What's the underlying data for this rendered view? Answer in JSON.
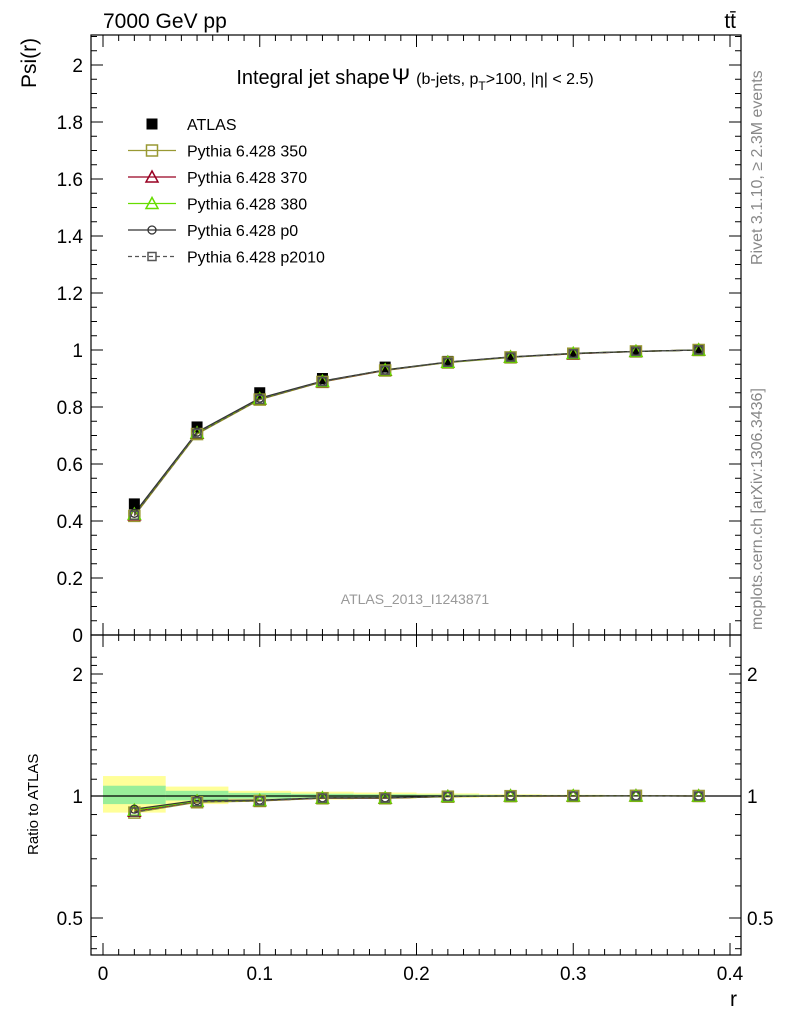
{
  "header": {
    "energy_label": "7000 GeV pp",
    "process_label": "tt̄",
    "side_top": "Rivet 3.1.10, ≥ 2.3M events",
    "side_bottom": "mcplots.cern.ch [arXiv:1306.3436]",
    "watermark": "ATLAS_2013_I1243871"
  },
  "chart_data": [
    {
      "panel": "main",
      "type": "scatter",
      "title": "Integral jet shape",
      "title_symbol": "Ψ",
      "title_cut": "(b-jets, p",
      "title_sub": "T",
      "title_cut2": ">100, |η| < 2.5)",
      "ylabel": "Psi(r)",
      "xlim": [
        0,
        0.4
      ],
      "ylim": [
        0,
        2.1
      ],
      "yticks": [
        0,
        0.2,
        0.4,
        0.6,
        0.8,
        1,
        1.2,
        1.4,
        1.6,
        1.8,
        2
      ],
      "ytick_labels": [
        "0",
        "0.2",
        "0.4",
        "0.6",
        "0.8",
        "1",
        "1.2",
        "1.4",
        "1.6",
        "1.8",
        "2"
      ],
      "x": [
        0.02,
        0.06,
        0.1,
        0.14,
        0.18,
        0.22,
        0.26,
        0.3,
        0.34,
        0.38
      ],
      "series": [
        {
          "name": "ATLAS",
          "color": "#000000",
          "marker": "filled-square",
          "values": [
            0.46,
            0.73,
            0.85,
            0.9,
            0.94,
            0.96,
            0.975,
            0.987,
            0.994,
            1.0
          ]
        },
        {
          "name": "Pythia 6.428 350",
          "color": "#999933",
          "marker": "open-square",
          "values": [
            0.418,
            0.705,
            0.826,
            0.888,
            0.928,
            0.956,
            0.974,
            0.987,
            0.995,
            1.0
          ]
        },
        {
          "name": "Pythia 6.428 370",
          "color": "#990022",
          "marker": "open-triangle",
          "values": [
            0.422,
            0.708,
            0.828,
            0.889,
            0.929,
            0.957,
            0.975,
            0.987,
            0.995,
            1.0
          ]
        },
        {
          "name": "Pythia 6.428 380",
          "color": "#66dd00",
          "marker": "open-triangle",
          "values": [
            0.424,
            0.709,
            0.829,
            0.89,
            0.93,
            0.957,
            0.975,
            0.988,
            0.995,
            1.0
          ]
        },
        {
          "name": "Pythia 6.428 p0",
          "color": "#333333",
          "marker": "open-circle",
          "values": [
            0.427,
            0.712,
            0.831,
            0.891,
            0.93,
            0.958,
            0.976,
            0.988,
            0.995,
            1.0
          ]
        },
        {
          "name": "Pythia 6.428 p2010",
          "color": "#555555",
          "marker": "open-square-dashed",
          "values": [
            0.42,
            0.707,
            0.827,
            0.889,
            0.929,
            0.957,
            0.975,
            0.987,
            0.995,
            1.0
          ]
        }
      ]
    },
    {
      "panel": "ratio",
      "type": "line",
      "ylabel": "Ratio to ATLAS",
      "xlabel": "r",
      "xlim": [
        0,
        0.4
      ],
      "ylim": [
        0.4,
        2.3
      ],
      "scale": "log",
      "yticks": [
        0.5,
        1,
        2
      ],
      "ytick_labels": [
        "0.5",
        "1",
        "2"
      ],
      "xticks": [
        0,
        0.1,
        0.2,
        0.3,
        0.4
      ],
      "xtick_labels": [
        "0",
        "0.1",
        "0.2",
        "0.3",
        "0.4"
      ],
      "x": [
        0.02,
        0.06,
        0.1,
        0.14,
        0.18,
        0.22,
        0.26,
        0.3,
        0.34,
        0.38
      ],
      "bin_edges": [
        0,
        0.04,
        0.08,
        0.12,
        0.16,
        0.2,
        0.24,
        0.28,
        0.32,
        0.36,
        0.4
      ],
      "band_yellow": [
        [
          0.91,
          1.12
        ],
        [
          0.955,
          1.055
        ],
        [
          0.975,
          1.03
        ],
        [
          0.98,
          1.025
        ],
        [
          0.985,
          1.02
        ],
        [
          0.99,
          1.015
        ],
        [
          0.993,
          1.01
        ],
        [
          0.995,
          1.007
        ],
        [
          0.997,
          1.005
        ],
        [
          0.998,
          1.003
        ]
      ],
      "band_green": [
        [
          0.955,
          1.06
        ],
        [
          0.975,
          1.03
        ],
        [
          0.985,
          1.018
        ],
        [
          0.99,
          1.013
        ],
        [
          0.992,
          1.01
        ],
        [
          0.995,
          1.008
        ],
        [
          0.996,
          1.006
        ],
        [
          0.997,
          1.004
        ],
        [
          0.998,
          1.003
        ],
        [
          0.999,
          1.002
        ]
      ],
      "series": [
        {
          "name": "Pythia 6.428 350",
          "color": "#999933",
          "marker": "open-square",
          "values": [
            0.91,
            0.965,
            0.972,
            0.987,
            0.987,
            0.996,
            0.999,
            1.0,
            1.001,
            1.0
          ]
        },
        {
          "name": "Pythia 6.428 370",
          "color": "#990022",
          "marker": "open-triangle",
          "values": [
            0.917,
            0.97,
            0.974,
            0.988,
            0.988,
            0.997,
            1.0,
            1.0,
            1.001,
            1.0
          ]
        },
        {
          "name": "Pythia 6.428 380",
          "color": "#66dd00",
          "marker": "open-triangle",
          "values": [
            0.922,
            0.971,
            0.975,
            0.989,
            0.989,
            0.997,
            1.0,
            1.001,
            1.001,
            1.0
          ]
        },
        {
          "name": "Pythia 6.428 p0",
          "color": "#333333",
          "marker": "open-circle",
          "values": [
            0.928,
            0.975,
            0.977,
            0.99,
            0.99,
            0.998,
            1.001,
            1.001,
            1.001,
            1.0
          ]
        },
        {
          "name": "Pythia 6.428 p2010",
          "color": "#555555",
          "marker": "open-square-dashed",
          "values": [
            0.913,
            0.968,
            0.973,
            0.988,
            0.988,
            0.997,
            1.0,
            1.0,
            1.001,
            1.0
          ]
        }
      ]
    }
  ]
}
